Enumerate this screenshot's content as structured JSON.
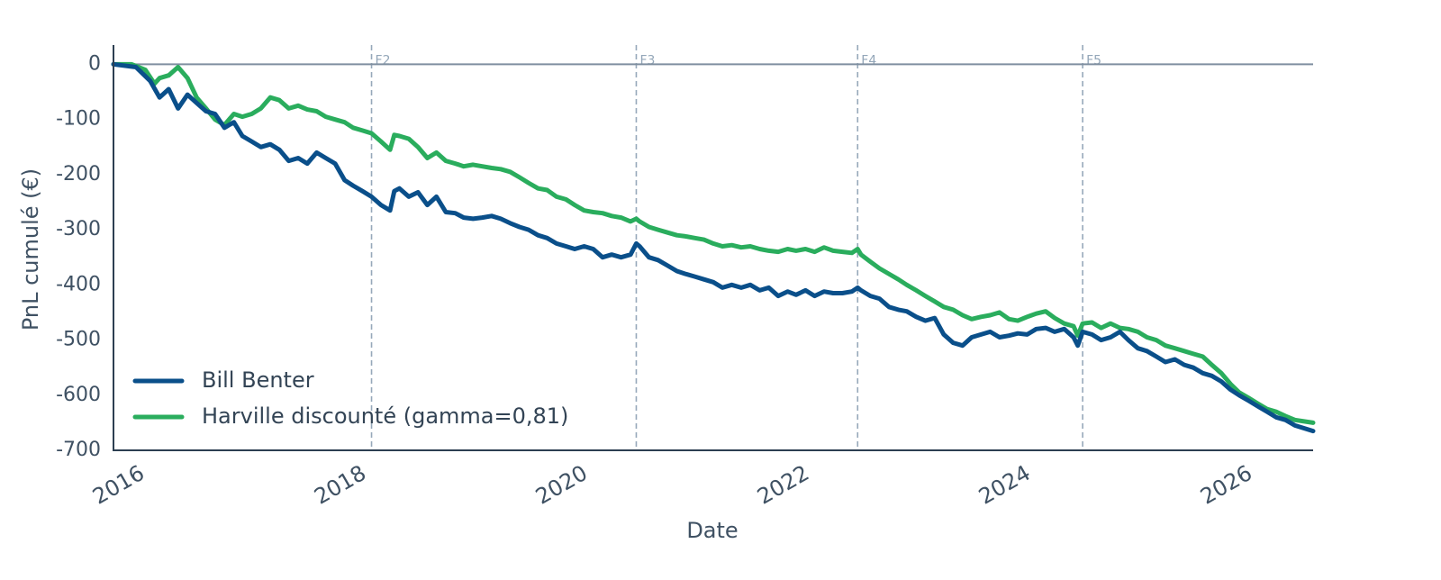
{
  "chart_data": {
    "type": "line",
    "title": "",
    "xlabel": "Date",
    "ylabel": "PnL cumulé (€)",
    "xlim": [
      "2016-01-01",
      "2026-10-31"
    ],
    "ylim": [
      -700,
      35
    ],
    "x_ticks": [
      "2016",
      "2018",
      "2020",
      "2022",
      "2024",
      "2026"
    ],
    "y_ticks": [
      0,
      -100,
      -200,
      -300,
      -400,
      -500,
      -600,
      -700
    ],
    "grid": false,
    "reference_line_y": 0,
    "fold_markers": [
      {
        "label": "F2",
        "date": "2018-05-01"
      },
      {
        "label": "F3",
        "date": "2020-09-20"
      },
      {
        "label": "F4",
        "date": "2022-09-20"
      },
      {
        "label": "F5",
        "date": "2024-10-01"
      }
    ],
    "legend_position": "lower-left",
    "colors": {
      "reference_line": "#7f8fa0",
      "fold_line": "#96a8ba",
      "axis": "#2d3f52"
    },
    "series": [
      {
        "name": "Bill Benter",
        "color": "#0a4f8a",
        "points": [
          [
            "2016-01-01",
            0
          ],
          [
            "2016-03-15",
            -5
          ],
          [
            "2016-05-01",
            -30
          ],
          [
            "2016-06-01",
            -60
          ],
          [
            "2016-07-01",
            -45
          ],
          [
            "2016-08-01",
            -80
          ],
          [
            "2016-09-01",
            -55
          ],
          [
            "2016-10-01",
            -70
          ],
          [
            "2016-11-01",
            -85
          ],
          [
            "2016-12-01",
            -90
          ],
          [
            "2017-01-01",
            -115
          ],
          [
            "2017-02-01",
            -105
          ],
          [
            "2017-03-01",
            -130
          ],
          [
            "2017-04-01",
            -140
          ],
          [
            "2017-05-01",
            -150
          ],
          [
            "2017-06-01",
            -145
          ],
          [
            "2017-07-01",
            -155
          ],
          [
            "2017-08-01",
            -175
          ],
          [
            "2017-09-01",
            -170
          ],
          [
            "2017-10-01",
            -180
          ],
          [
            "2017-11-01",
            -160
          ],
          [
            "2017-12-01",
            -170
          ],
          [
            "2018-01-01",
            -180
          ],
          [
            "2018-02-01",
            -210
          ],
          [
            "2018-03-01",
            -220
          ],
          [
            "2018-04-01",
            -230
          ],
          [
            "2018-05-01",
            -240
          ],
          [
            "2018-06-01",
            -255
          ],
          [
            "2018-07-01",
            -265
          ],
          [
            "2018-07-15",
            -230
          ],
          [
            "2018-08-01",
            -225
          ],
          [
            "2018-09-01",
            -240
          ],
          [
            "2018-10-01",
            -232
          ],
          [
            "2018-11-01",
            -255
          ],
          [
            "2018-12-01",
            -240
          ],
          [
            "2019-01-01",
            -268
          ],
          [
            "2019-02-01",
            -270
          ],
          [
            "2019-03-01",
            -278
          ],
          [
            "2019-04-01",
            -280
          ],
          [
            "2019-05-01",
            -278
          ],
          [
            "2019-06-01",
            -275
          ],
          [
            "2019-07-01",
            -280
          ],
          [
            "2019-08-01",
            -288
          ],
          [
            "2019-09-01",
            -295
          ],
          [
            "2019-10-01",
            -300
          ],
          [
            "2019-11-01",
            -310
          ],
          [
            "2019-12-01",
            -315
          ],
          [
            "2020-01-01",
            -325
          ],
          [
            "2020-02-01",
            -330
          ],
          [
            "2020-03-01",
            -335
          ],
          [
            "2020-04-01",
            -330
          ],
          [
            "2020-05-01",
            -335
          ],
          [
            "2020-06-01",
            -350
          ],
          [
            "2020-07-01",
            -345
          ],
          [
            "2020-08-01",
            -350
          ],
          [
            "2020-09-01",
            -345
          ],
          [
            "2020-09-20",
            -325
          ],
          [
            "2020-10-01",
            -330
          ],
          [
            "2020-11-01",
            -350
          ],
          [
            "2020-12-01",
            -355
          ],
          [
            "2021-01-01",
            -365
          ],
          [
            "2021-02-01",
            -375
          ],
          [
            "2021-03-01",
            -380
          ],
          [
            "2021-04-01",
            -385
          ],
          [
            "2021-05-01",
            -390
          ],
          [
            "2021-06-01",
            -395
          ],
          [
            "2021-07-01",
            -405
          ],
          [
            "2021-08-01",
            -400
          ],
          [
            "2021-09-01",
            -405
          ],
          [
            "2021-10-01",
            -400
          ],
          [
            "2021-11-01",
            -410
          ],
          [
            "2021-12-01",
            -405
          ],
          [
            "2022-01-01",
            -420
          ],
          [
            "2022-02-01",
            -412
          ],
          [
            "2022-03-01",
            -418
          ],
          [
            "2022-04-01",
            -410
          ],
          [
            "2022-05-01",
            -420
          ],
          [
            "2022-06-01",
            -412
          ],
          [
            "2022-07-01",
            -415
          ],
          [
            "2022-08-01",
            -415
          ],
          [
            "2022-09-01",
            -412
          ],
          [
            "2022-09-20",
            -405
          ],
          [
            "2022-10-01",
            -410
          ],
          [
            "2022-11-01",
            -420
          ],
          [
            "2022-12-01",
            -425
          ],
          [
            "2023-01-01",
            -440
          ],
          [
            "2023-02-01",
            -445
          ],
          [
            "2023-03-01",
            -448
          ],
          [
            "2023-04-01",
            -458
          ],
          [
            "2023-05-01",
            -465
          ],
          [
            "2023-06-01",
            -460
          ],
          [
            "2023-07-01",
            -490
          ],
          [
            "2023-08-01",
            -505
          ],
          [
            "2023-09-01",
            -510
          ],
          [
            "2023-10-01",
            -495
          ],
          [
            "2023-11-01",
            -490
          ],
          [
            "2023-12-01",
            -485
          ],
          [
            "2024-01-01",
            -495
          ],
          [
            "2024-02-01",
            -492
          ],
          [
            "2024-03-01",
            -488
          ],
          [
            "2024-04-01",
            -490
          ],
          [
            "2024-05-01",
            -480
          ],
          [
            "2024-06-01",
            -478
          ],
          [
            "2024-07-01",
            -485
          ],
          [
            "2024-08-01",
            -480
          ],
          [
            "2024-09-01",
            -495
          ],
          [
            "2024-09-15",
            -510
          ],
          [
            "2024-10-01",
            -485
          ],
          [
            "2024-11-01",
            -490
          ],
          [
            "2024-12-01",
            -500
          ],
          [
            "2025-01-01",
            -495
          ],
          [
            "2025-02-01",
            -485
          ],
          [
            "2025-03-01",
            -500
          ],
          [
            "2025-04-01",
            -515
          ],
          [
            "2025-05-01",
            -520
          ],
          [
            "2025-06-01",
            -530
          ],
          [
            "2025-07-01",
            -540
          ],
          [
            "2025-08-01",
            -535
          ],
          [
            "2025-09-01",
            -545
          ],
          [
            "2025-10-01",
            -550
          ],
          [
            "2025-11-01",
            -560
          ],
          [
            "2025-12-01",
            -565
          ],
          [
            "2026-01-01",
            -575
          ],
          [
            "2026-02-01",
            -590
          ],
          [
            "2026-03-01",
            -600
          ],
          [
            "2026-04-01",
            -610
          ],
          [
            "2026-05-01",
            -620
          ],
          [
            "2026-06-01",
            -630
          ],
          [
            "2026-07-01",
            -640
          ],
          [
            "2026-08-01",
            -645
          ],
          [
            "2026-09-01",
            -655
          ],
          [
            "2026-10-31",
            -665
          ]
        ]
      },
      {
        "name": "Harville discounté (gamma=0,81)",
        "color": "#2aad5d",
        "points": [
          [
            "2016-01-01",
            0
          ],
          [
            "2016-03-01",
            0
          ],
          [
            "2016-04-15",
            -10
          ],
          [
            "2016-05-15",
            -35
          ],
          [
            "2016-06-01",
            -25
          ],
          [
            "2016-07-01",
            -20
          ],
          [
            "2016-08-01",
            -5
          ],
          [
            "2016-09-01",
            -25
          ],
          [
            "2016-10-01",
            -60
          ],
          [
            "2016-11-01",
            -80
          ],
          [
            "2016-12-01",
            -100
          ],
          [
            "2017-01-01",
            -110
          ],
          [
            "2017-02-01",
            -90
          ],
          [
            "2017-03-01",
            -95
          ],
          [
            "2017-04-01",
            -90
          ],
          [
            "2017-05-01",
            -80
          ],
          [
            "2017-06-01",
            -60
          ],
          [
            "2017-07-01",
            -65
          ],
          [
            "2017-08-01",
            -80
          ],
          [
            "2017-09-01",
            -75
          ],
          [
            "2017-10-01",
            -82
          ],
          [
            "2017-11-01",
            -85
          ],
          [
            "2017-12-01",
            -95
          ],
          [
            "2018-01-01",
            -100
          ],
          [
            "2018-02-01",
            -105
          ],
          [
            "2018-03-01",
            -115
          ],
          [
            "2018-04-01",
            -120
          ],
          [
            "2018-05-01",
            -125
          ],
          [
            "2018-06-01",
            -140
          ],
          [
            "2018-07-01",
            -155
          ],
          [
            "2018-07-15",
            -128
          ],
          [
            "2018-08-01",
            -130
          ],
          [
            "2018-09-01",
            -135
          ],
          [
            "2018-10-01",
            -150
          ],
          [
            "2018-11-01",
            -170
          ],
          [
            "2018-12-01",
            -160
          ],
          [
            "2019-01-01",
            -175
          ],
          [
            "2019-02-01",
            -180
          ],
          [
            "2019-03-01",
            -185
          ],
          [
            "2019-04-01",
            -182
          ],
          [
            "2019-05-01",
            -185
          ],
          [
            "2019-06-01",
            -188
          ],
          [
            "2019-07-01",
            -190
          ],
          [
            "2019-08-01",
            -195
          ],
          [
            "2019-09-01",
            -205
          ],
          [
            "2019-10-01",
            -215
          ],
          [
            "2019-11-01",
            -225
          ],
          [
            "2019-12-01",
            -228
          ],
          [
            "2020-01-01",
            -240
          ],
          [
            "2020-02-01",
            -245
          ],
          [
            "2020-03-01",
            -255
          ],
          [
            "2020-04-01",
            -265
          ],
          [
            "2020-05-01",
            -268
          ],
          [
            "2020-06-01",
            -270
          ],
          [
            "2020-07-01",
            -275
          ],
          [
            "2020-08-01",
            -278
          ],
          [
            "2020-09-01",
            -285
          ],
          [
            "2020-09-20",
            -280
          ],
          [
            "2020-10-01",
            -285
          ],
          [
            "2020-11-01",
            -295
          ],
          [
            "2020-12-01",
            -300
          ],
          [
            "2021-01-01",
            -305
          ],
          [
            "2021-02-01",
            -310
          ],
          [
            "2021-03-01",
            -312
          ],
          [
            "2021-04-01",
            -315
          ],
          [
            "2021-05-01",
            -318
          ],
          [
            "2021-06-01",
            -325
          ],
          [
            "2021-07-01",
            -330
          ],
          [
            "2021-08-01",
            -328
          ],
          [
            "2021-09-01",
            -332
          ],
          [
            "2021-10-01",
            -330
          ],
          [
            "2021-11-01",
            -335
          ],
          [
            "2021-12-01",
            -338
          ],
          [
            "2022-01-01",
            -340
          ],
          [
            "2022-02-01",
            -335
          ],
          [
            "2022-03-01",
            -338
          ],
          [
            "2022-04-01",
            -335
          ],
          [
            "2022-05-01",
            -340
          ],
          [
            "2022-06-01",
            -332
          ],
          [
            "2022-07-01",
            -338
          ],
          [
            "2022-08-01",
            -340
          ],
          [
            "2022-09-01",
            -342
          ],
          [
            "2022-09-20",
            -335
          ],
          [
            "2022-10-01",
            -345
          ],
          [
            "2022-11-01",
            -358
          ],
          [
            "2022-12-01",
            -370
          ],
          [
            "2023-01-01",
            -380
          ],
          [
            "2023-02-01",
            -390
          ],
          [
            "2023-03-01",
            -400
          ],
          [
            "2023-04-01",
            -410
          ],
          [
            "2023-05-01",
            -420
          ],
          [
            "2023-06-01",
            -430
          ],
          [
            "2023-07-01",
            -440
          ],
          [
            "2023-08-01",
            -445
          ],
          [
            "2023-09-01",
            -455
          ],
          [
            "2023-10-01",
            -462
          ],
          [
            "2023-11-01",
            -458
          ],
          [
            "2023-12-01",
            -455
          ],
          [
            "2024-01-01",
            -450
          ],
          [
            "2024-02-01",
            -462
          ],
          [
            "2024-03-01",
            -465
          ],
          [
            "2024-04-01",
            -458
          ],
          [
            "2024-05-01",
            -452
          ],
          [
            "2024-06-01",
            -448
          ],
          [
            "2024-07-01",
            -460
          ],
          [
            "2024-08-01",
            -470
          ],
          [
            "2024-09-01",
            -475
          ],
          [
            "2024-09-15",
            -492
          ],
          [
            "2024-10-01",
            -470
          ],
          [
            "2024-11-01",
            -468
          ],
          [
            "2024-12-01",
            -478
          ],
          [
            "2025-01-01",
            -470
          ],
          [
            "2025-02-01",
            -478
          ],
          [
            "2025-03-01",
            -480
          ],
          [
            "2025-04-01",
            -485
          ],
          [
            "2025-05-01",
            -495
          ],
          [
            "2025-06-01",
            -500
          ],
          [
            "2025-07-01",
            -510
          ],
          [
            "2025-08-01",
            -515
          ],
          [
            "2025-09-01",
            -520
          ],
          [
            "2025-10-01",
            -525
          ],
          [
            "2025-11-01",
            -530
          ],
          [
            "2025-12-01",
            -545
          ],
          [
            "2026-01-01",
            -560
          ],
          [
            "2026-02-01",
            -580
          ],
          [
            "2026-03-01",
            -595
          ],
          [
            "2026-04-01",
            -605
          ],
          [
            "2026-05-01",
            -615
          ],
          [
            "2026-06-01",
            -625
          ],
          [
            "2026-07-01",
            -630
          ],
          [
            "2026-08-01",
            -638
          ],
          [
            "2026-09-01",
            -645
          ],
          [
            "2026-10-31",
            -650
          ]
        ]
      }
    ]
  }
}
